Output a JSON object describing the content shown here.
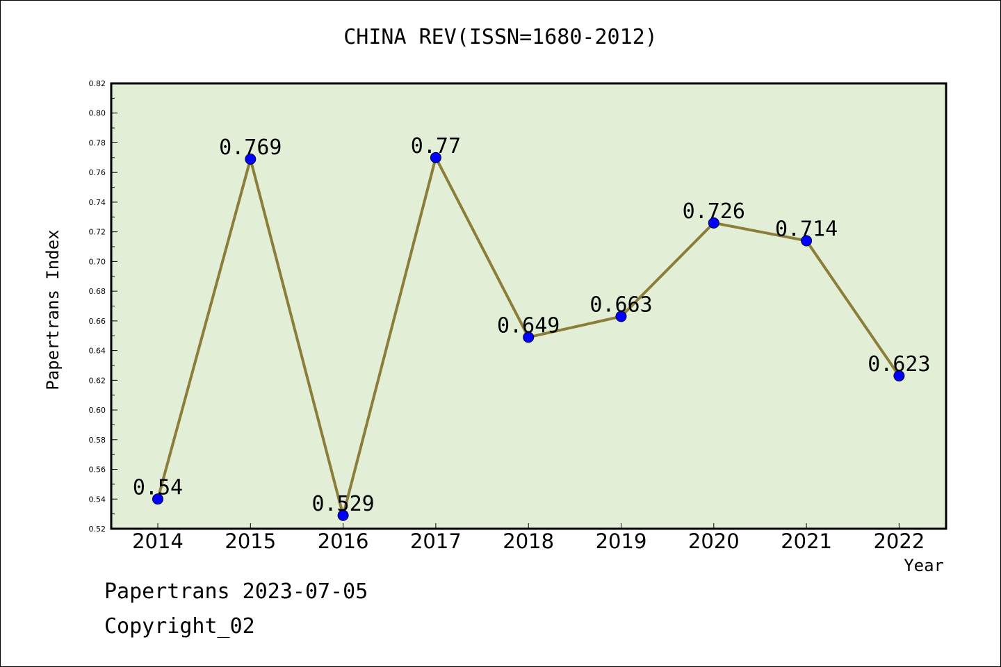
{
  "colors": {
    "plot_background": "#e2efd6",
    "line": "#8b7d3a",
    "marker": "#0000ff"
  },
  "footer": {
    "date_line": "Papertrans 2023-07-05",
    "copyright": "Copyright_02"
  },
  "chart_data": {
    "type": "line",
    "title": "CHINA REV(ISSN=1680-2012)",
    "xlabel": "Year",
    "ylabel": "Papertrans Index",
    "categories": [
      "2014",
      "2015",
      "2016",
      "2017",
      "2018",
      "2019",
      "2020",
      "2021",
      "2022"
    ],
    "series": [
      {
        "values": [
          0.54,
          0.769,
          0.529,
          0.77,
          0.649,
          0.663,
          0.726,
          0.714,
          0.623
        ],
        "labels": [
          "0.54",
          "0.769",
          "0.529",
          "0.77",
          "0.649",
          "0.663",
          "0.726",
          "0.714",
          "0.623"
        ]
      }
    ],
    "ylim": [
      0.52,
      0.82
    ],
    "yticks": [
      "0.52",
      "0.54",
      "0.56",
      "0.58",
      "0.60",
      "0.62",
      "0.64",
      "0.66",
      "0.68",
      "0.70",
      "0.72",
      "0.74",
      "0.76",
      "0.78",
      "0.80",
      "0.82"
    ],
    "grid": false,
    "legend": "none"
  }
}
